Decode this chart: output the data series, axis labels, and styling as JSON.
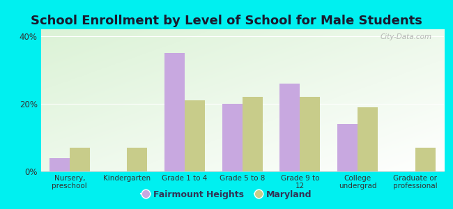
{
  "title": "School Enrollment by Level of School for Male Students",
  "categories": [
    "Nursery,\npreschool",
    "Kindergarten",
    "Grade 1 to 4",
    "Grade 5 to 8",
    "Grade 9 to\n12",
    "College\nundergrad",
    "Graduate or\nprofessional"
  ],
  "fairmount_heights": [
    4,
    0,
    35,
    20,
    26,
    14,
    0
  ],
  "maryland": [
    7,
    7,
    21,
    22,
    22,
    19,
    7
  ],
  "bar_color_fh": "#c8a8e0",
  "bar_color_md": "#c8cc8a",
  "background_color": "#00f0f0",
  "title_fontsize": 13,
  "ylabel_ticks": [
    "0%",
    "20%",
    "40%"
  ],
  "yticks": [
    0,
    20,
    40
  ],
  "ylim": [
    0,
    42
  ],
  "legend_labels": [
    "Fairmount Heights",
    "Maryland"
  ],
  "bar_width": 0.35,
  "watermark": "City-Data.com"
}
